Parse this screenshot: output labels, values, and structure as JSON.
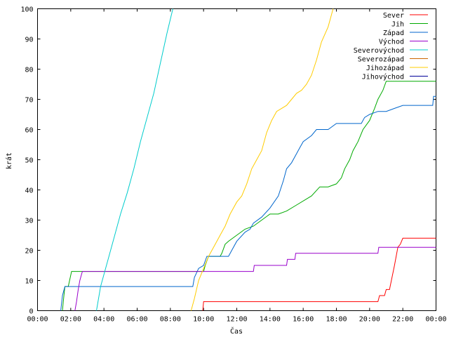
{
  "chart_data": {
    "type": "line",
    "title": "",
    "xlabel": "Čas",
    "ylabel": "krát",
    "xlim": [
      0,
      24
    ],
    "ylim": [
      0,
      100
    ],
    "x_ticks": [
      {
        "value": 0,
        "label": "00:00"
      },
      {
        "value": 2,
        "label": "02:00"
      },
      {
        "value": 4,
        "label": "04:00"
      },
      {
        "value": 6,
        "label": "06:00"
      },
      {
        "value": 8,
        "label": "08:00"
      },
      {
        "value": 10,
        "label": "10:00"
      },
      {
        "value": 12,
        "label": "12:00"
      },
      {
        "value": 14,
        "label": "14:00"
      },
      {
        "value": 16,
        "label": "16:00"
      },
      {
        "value": 18,
        "label": "18:00"
      },
      {
        "value": 20,
        "label": "20:00"
      },
      {
        "value": 22,
        "label": "22:00"
      },
      {
        "value": 24,
        "label": "00:00"
      }
    ],
    "y_ticks": [
      0,
      10,
      20,
      30,
      40,
      50,
      60,
      70,
      80,
      90,
      100
    ],
    "grid": false,
    "legend_position": "top-right",
    "series": [
      {
        "name": "Sever",
        "color": "#ff0000",
        "points": [
          [
            9.95,
            0
          ],
          [
            10.0,
            3
          ],
          [
            20.5,
            3
          ],
          [
            20.6,
            5
          ],
          [
            20.9,
            5
          ],
          [
            21.0,
            7
          ],
          [
            21.2,
            7
          ],
          [
            21.5,
            15
          ],
          [
            21.7,
            21
          ],
          [
            21.85,
            22
          ],
          [
            22.0,
            24
          ],
          [
            24.0,
            24
          ]
        ]
      },
      {
        "name": "Jih",
        "color": "#00aa00",
        "points": [
          [
            1.5,
            0
          ],
          [
            1.55,
            3
          ],
          [
            1.65,
            8
          ],
          [
            1.85,
            8
          ],
          [
            2.05,
            13
          ],
          [
            2.6,
            13
          ],
          [
            10.0,
            13
          ],
          [
            10.1,
            15
          ],
          [
            10.3,
            18
          ],
          [
            11.0,
            18
          ],
          [
            11.1,
            19
          ],
          [
            11.3,
            22
          ],
          [
            11.5,
            23
          ],
          [
            12.0,
            25
          ],
          [
            12.5,
            27
          ],
          [
            13.0,
            28
          ],
          [
            13.5,
            30
          ],
          [
            14.0,
            32
          ],
          [
            14.5,
            32
          ],
          [
            15.0,
            33
          ],
          [
            15.6,
            35
          ],
          [
            16.5,
            38
          ],
          [
            17.0,
            41
          ],
          [
            17.5,
            41
          ],
          [
            18.0,
            42
          ],
          [
            18.3,
            44
          ],
          [
            18.5,
            47
          ],
          [
            18.8,
            50
          ],
          [
            19.0,
            53
          ],
          [
            19.3,
            56
          ],
          [
            19.6,
            60
          ],
          [
            20.0,
            63
          ],
          [
            20.3,
            67
          ],
          [
            20.5,
            70
          ],
          [
            20.8,
            73
          ],
          [
            21.0,
            76
          ],
          [
            24.0,
            76
          ]
        ]
      },
      {
        "name": "Západ",
        "color": "#0066cc",
        "points": [
          [
            1.4,
            0
          ],
          [
            1.5,
            5
          ],
          [
            1.65,
            8
          ],
          [
            9.35,
            8
          ],
          [
            9.45,
            11
          ],
          [
            9.7,
            14
          ],
          [
            10.0,
            15
          ],
          [
            10.2,
            18
          ],
          [
            11.5,
            18
          ],
          [
            11.7,
            20
          ],
          [
            12.0,
            23
          ],
          [
            12.5,
            26
          ],
          [
            12.8,
            27
          ],
          [
            13.0,
            29
          ],
          [
            13.5,
            31
          ],
          [
            14.0,
            34
          ],
          [
            14.5,
            38
          ],
          [
            14.8,
            43
          ],
          [
            15.0,
            47
          ],
          [
            15.3,
            49
          ],
          [
            15.5,
            51
          ],
          [
            15.8,
            54
          ],
          [
            16.0,
            56
          ],
          [
            16.5,
            58
          ],
          [
            16.8,
            60
          ],
          [
            17.5,
            60
          ],
          [
            18.0,
            62
          ],
          [
            19.5,
            62
          ],
          [
            19.7,
            64
          ],
          [
            20.0,
            65
          ],
          [
            20.5,
            66
          ],
          [
            21.0,
            66
          ],
          [
            21.5,
            67
          ],
          [
            22.0,
            68
          ],
          [
            23.8,
            68
          ],
          [
            23.85,
            71
          ],
          [
            24.0,
            71
          ]
        ]
      },
      {
        "name": "Východ",
        "color": "#9900cc",
        "points": [
          [
            2.25,
            0
          ],
          [
            2.35,
            3
          ],
          [
            2.45,
            7
          ],
          [
            2.55,
            10
          ],
          [
            2.7,
            13
          ],
          [
            13.0,
            13
          ],
          [
            13.05,
            15
          ],
          [
            15.0,
            15
          ],
          [
            15.05,
            17
          ],
          [
            15.5,
            17
          ],
          [
            15.55,
            19
          ],
          [
            20.5,
            19
          ],
          [
            20.55,
            21
          ],
          [
            24.0,
            21
          ]
        ]
      },
      {
        "name": "Severovýchod",
        "color": "#00cccc",
        "points": [
          [
            3.55,
            0
          ],
          [
            3.8,
            8
          ],
          [
            4.2,
            16
          ],
          [
            4.6,
            24
          ],
          [
            5.0,
            32
          ],
          [
            5.4,
            39
          ],
          [
            5.8,
            47
          ],
          [
            6.2,
            56
          ],
          [
            6.6,
            64
          ],
          [
            7.0,
            72
          ],
          [
            7.4,
            82
          ],
          [
            7.8,
            92
          ],
          [
            8.15,
            100
          ]
        ]
      },
      {
        "name": "Severozápad",
        "color": "#cc6600",
        "points": []
      },
      {
        "name": "Jihozápad",
        "color": "#ffcc00",
        "points": [
          [
            9.25,
            0
          ],
          [
            9.45,
            4
          ],
          [
            9.7,
            10
          ],
          [
            10.0,
            14
          ],
          [
            10.3,
            18
          ],
          [
            10.6,
            21
          ],
          [
            11.0,
            25
          ],
          [
            11.3,
            28
          ],
          [
            11.6,
            32
          ],
          [
            12.0,
            36
          ],
          [
            12.3,
            38
          ],
          [
            12.6,
            42
          ],
          [
            12.9,
            47
          ],
          [
            13.2,
            50
          ],
          [
            13.5,
            53
          ],
          [
            13.8,
            59
          ],
          [
            14.1,
            63
          ],
          [
            14.4,
            66
          ],
          [
            14.7,
            67
          ],
          [
            15.0,
            68
          ],
          [
            15.3,
            70
          ],
          [
            15.6,
            72
          ],
          [
            15.9,
            73
          ],
          [
            16.2,
            75
          ],
          [
            16.5,
            78
          ],
          [
            16.8,
            83
          ],
          [
            17.1,
            89
          ],
          [
            17.5,
            94
          ],
          [
            17.8,
            100
          ]
        ]
      },
      {
        "name": "Jihovýchod",
        "color": "#000099",
        "points": []
      }
    ]
  }
}
